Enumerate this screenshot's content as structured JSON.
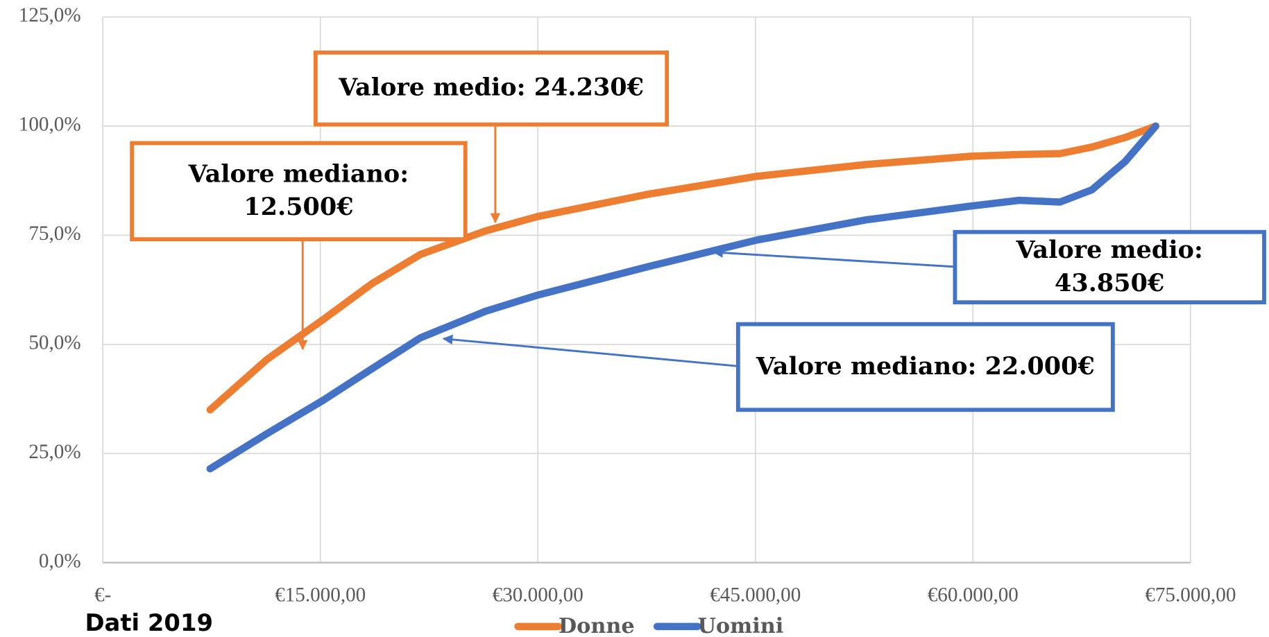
{
  "chart_data": {
    "type": "line",
    "x": [
      7400,
      11300,
      15200,
      18600,
      21900,
      26400,
      30000,
      37600,
      45100,
      52600,
      59900,
      63200,
      66000,
      68200,
      70500,
      72600
    ],
    "series": [
      {
        "name": "Donne",
        "color": "#ed7d31",
        "values": [
          35,
          46.5,
          55.7,
          64,
          70.6,
          76,
          79.3,
          84.4,
          88.5,
          91.2,
          93.1,
          93.5,
          93.7,
          95.2,
          97.4,
          100
        ]
      },
      {
        "name": "Uomini",
        "color": "#4472c4",
        "values": [
          21.5,
          29.5,
          37.2,
          44.5,
          51.5,
          57.6,
          61.3,
          67.8,
          73.9,
          78.5,
          81.7,
          83,
          82.6,
          85.4,
          91.9,
          100
        ]
      }
    ],
    "xlim": [
      0,
      75000
    ],
    "xticks": [
      {
        "value": 0,
        "label": "€-"
      },
      {
        "value": 15000,
        "label": "€15.000,00"
      },
      {
        "value": 30000,
        "label": "€30.000,00"
      },
      {
        "value": 45000,
        "label": "€45.000,00"
      },
      {
        "value": 60000,
        "label": "€60.000,00"
      },
      {
        "value": 75000,
        "label": "€75.000,00"
      }
    ],
    "ylim": [
      0,
      125
    ],
    "yticks": [
      {
        "value": 0,
        "label": "0,0%"
      },
      {
        "value": 25,
        "label": "25,0%"
      },
      {
        "value": 50,
        "label": "50,0%"
      },
      {
        "value": 75,
        "label": "75,0%"
      },
      {
        "value": 100,
        "label": "100,0%"
      },
      {
        "value": 125,
        "label": "125,0%"
      }
    ],
    "grid": true,
    "note": "Dati 2019",
    "annotations": [
      {
        "text": "Valore medio: 24.230€",
        "color": "#ed7d31"
      },
      {
        "text": "Valore mediano: 12.500€",
        "color": "#ed7d31"
      },
      {
        "text": "Valore medio: 43.850€",
        "color": "#4472c4"
      },
      {
        "text": "Valore mediano: 22.000€",
        "color": "#4472c4"
      }
    ]
  }
}
